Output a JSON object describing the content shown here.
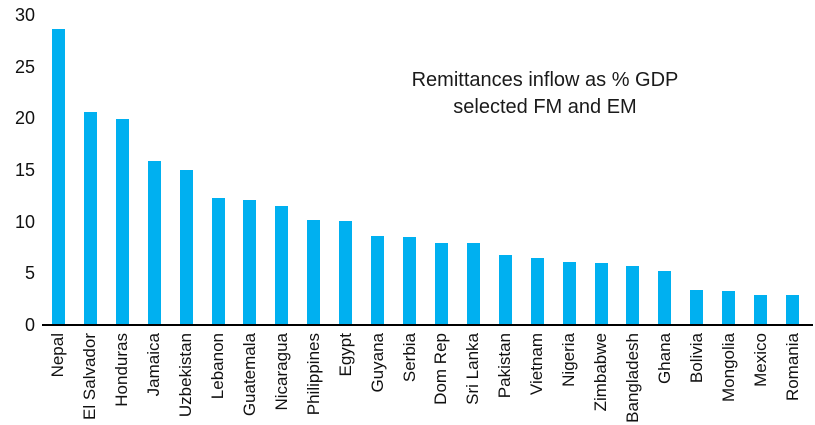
{
  "chart_data": {
    "type": "bar",
    "title": "Remittances inflow as % GDP",
    "subtitle": "selected FM and EM",
    "categories": [
      "Nepal",
      "El Salvador",
      "Honduras",
      "Jamaica",
      "Uzbekistan",
      "Lebanon",
      "Guatemala",
      "Nicaragua",
      "Philippines",
      "Egypt",
      "Guyana",
      "Serbia",
      "Dom Rep",
      "Sri Lanka",
      "Pakistan",
      "Vietnam",
      "Nigeria",
      "Zimbabwe",
      "Bangladesh",
      "Ghana",
      "Bolivia",
      "Mongolia",
      "Mexico",
      "Romania"
    ],
    "values": [
      28.6,
      20.6,
      19.9,
      15.9,
      15.0,
      12.3,
      12.1,
      11.5,
      10.2,
      10.1,
      8.6,
      8.5,
      7.9,
      7.9,
      6.8,
      6.5,
      6.1,
      6.0,
      5.7,
      5.2,
      3.4,
      3.3,
      2.9,
      2.9
    ],
    "xlabel": "",
    "ylabel": "",
    "ylim": [
      0,
      30
    ],
    "yticks": [
      0,
      5,
      10,
      15,
      20,
      25,
      30
    ],
    "grid": false,
    "legend": "none",
    "bar_color": "#00B0F0",
    "axis_color": "#000000",
    "text_color": "#111111",
    "x_label_rotation": "bottom-to-top"
  }
}
